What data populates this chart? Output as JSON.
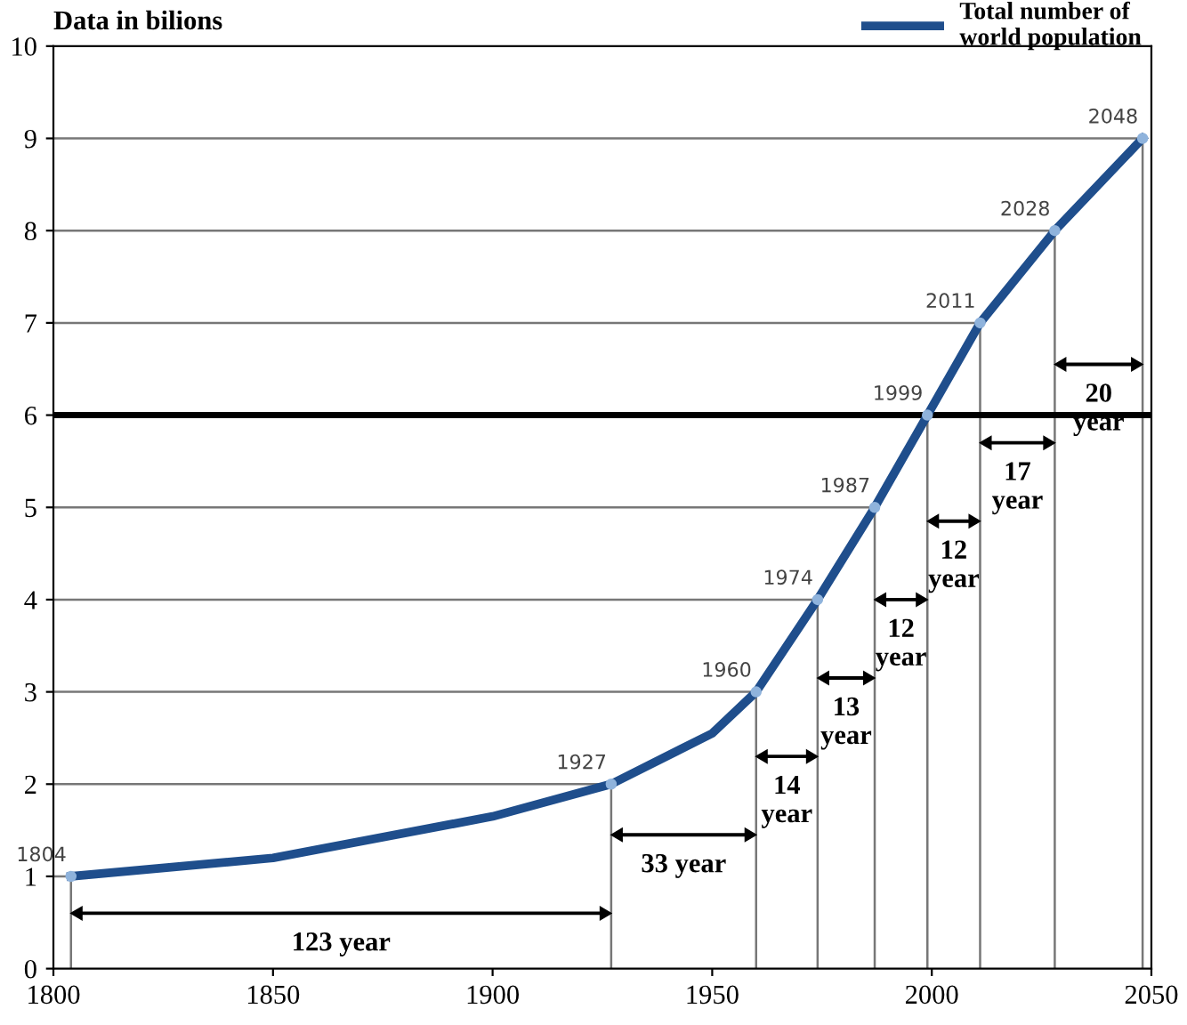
{
  "chart_data": {
    "type": "line",
    "ylabel": "Data in bilions",
    "x": [
      1804,
      1850,
      1900,
      1927,
      1950,
      1960,
      1974,
      1987,
      1999,
      2011,
      2028,
      2048
    ],
    "series": [
      {
        "name": "Total number of world population",
        "color": "#1f4e8c",
        "values": [
          1,
          1.2,
          1.65,
          2,
          2.55,
          3,
          4,
          5,
          6,
          7,
          8,
          9
        ]
      }
    ],
    "xlim": [
      1800,
      2050
    ],
    "xticks": [
      1800,
      1850,
      1900,
      1950,
      2000,
      2050
    ],
    "ylim": [
      0,
      10
    ],
    "yticks": [
      0,
      1,
      2,
      3,
      4,
      5,
      6,
      7,
      8,
      9,
      10
    ],
    "ref_lines": [
      {
        "axis": "y",
        "value": 6,
        "color": "#000000"
      }
    ],
    "legend": "top right",
    "grid": true,
    "annotations": [
      {
        "text": "1804",
        "x": 1804,
        "y": 1
      },
      {
        "text": "1927",
        "x": 1927,
        "y": 2
      },
      {
        "text": "1960",
        "x": 1960,
        "y": 3
      },
      {
        "text": "1974",
        "x": 1974,
        "y": 4
      },
      {
        "text": "1987",
        "x": 1987,
        "y": 5
      },
      {
        "text": "1999",
        "x": 1999,
        "y": 6
      },
      {
        "text": "2011",
        "x": 2011,
        "y": 7
      },
      {
        "text": "2028",
        "x": 2028,
        "y": 8
      },
      {
        "text": "2048",
        "x": 2048,
        "y": 9
      },
      "123 year",
      "33 year",
      "14 year",
      "13 year",
      "12 year",
      "12 year",
      "17 year",
      "20 year"
    ]
  }
}
